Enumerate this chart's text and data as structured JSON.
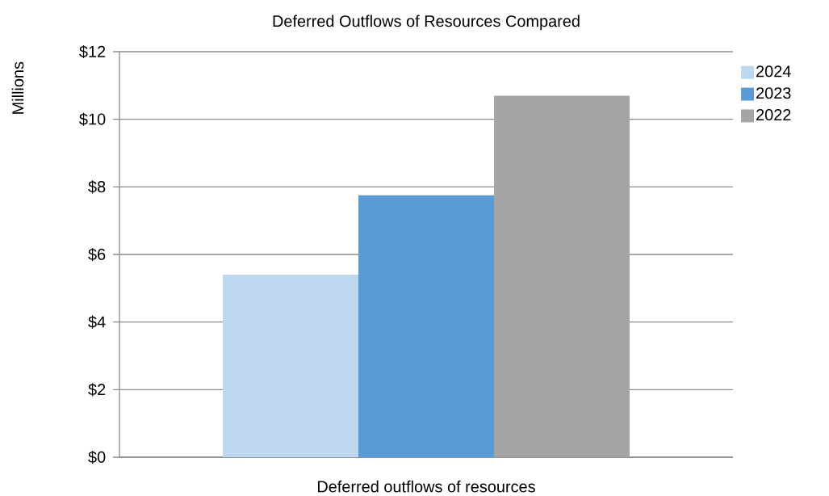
{
  "chart_data": {
    "type": "bar",
    "title": "Deferred Outflows of Resources Compared",
    "xlabel": "Deferred outflows of resources",
    "ylabel": "Millions",
    "categories": [
      null
    ],
    "series": [
      {
        "name": "2024",
        "color": "#bdd7ee",
        "values": [
          5.4
        ]
      },
      {
        "name": "2023",
        "color": "#5b9bd5",
        "values": [
          7.75
        ]
      },
      {
        "name": "2022",
        "color": "#a5a5a5",
        "values": [
          10.7
        ]
      }
    ],
    "ylim": [
      0,
      12
    ],
    "yticks": [
      {
        "value": 0,
        "label": "$0"
      },
      {
        "value": 2,
        "label": "$2"
      },
      {
        "value": 4,
        "label": "$4"
      },
      {
        "value": 6,
        "label": "$6"
      },
      {
        "value": 8,
        "label": "$8"
      },
      {
        "value": 10,
        "label": "$10"
      },
      {
        "value": 12,
        "label": "$12"
      }
    ],
    "grid": "y",
    "legend": "right"
  }
}
